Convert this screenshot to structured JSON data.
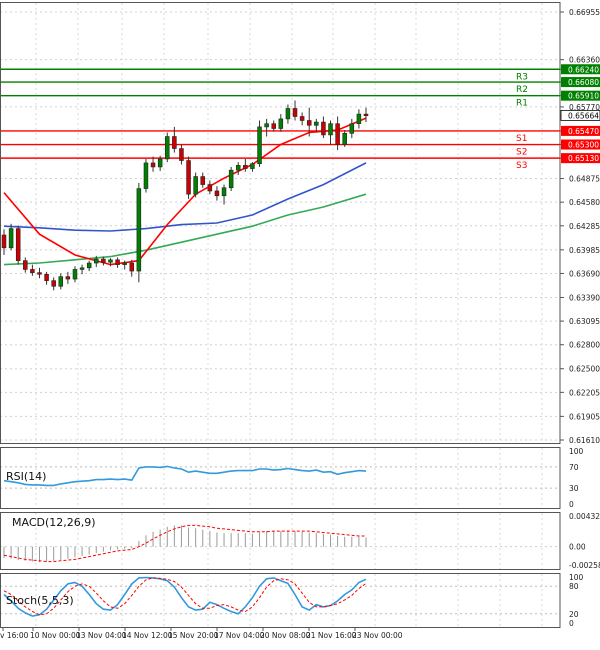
{
  "chart_data": {
    "type": "candlestick",
    "title": "",
    "price_axis": {
      "ticks": [
        "0.66955",
        "0.66360",
        "0.66240",
        "0.66080",
        "0.65910",
        "0.65770",
        "0.65664",
        "0.65470",
        "0.65300",
        "0.65130",
        "0.64875",
        "0.64580",
        "0.64285",
        "0.63985",
        "0.63690",
        "0.63390",
        "0.63095",
        "0.62800",
        "0.62500",
        "0.62205",
        "0.61905",
        "0.61610"
      ],
      "ylim": [
        0.6161,
        0.67
      ]
    },
    "current_price": "0.65664",
    "levels": [
      {
        "name": "R3",
        "value": 0.6624,
        "label": "0.66240",
        "color": "#008000"
      },
      {
        "name": "R2",
        "value": 0.6608,
        "label": "0.66080",
        "color": "#008000"
      },
      {
        "name": "R1",
        "value": 0.6591,
        "label": "0.65910",
        "color": "#008000"
      },
      {
        "name": "S1",
        "value": 0.6547,
        "label": "0.65470",
        "color": "#ff0000"
      },
      {
        "name": "S2",
        "value": 0.653,
        "label": "0.65300",
        "color": "#ff0000"
      },
      {
        "name": "S3",
        "value": 0.6513,
        "label": "0.65130",
        "color": "#ff0000"
      }
    ],
    "x_labels": [
      "v 16:00",
      "10 Nov 00:00",
      "13 Nov 04:00",
      "14 Nov 12:00",
      "15 Nov 20:00",
      "17 Nov 04:00",
      "20 Nov 08:00",
      "21 Nov 16:00",
      "23 Nov 00:00"
    ],
    "colors": {
      "up": "#008000",
      "down": "#cc0000",
      "ma_fast": "#ff0000",
      "ma_mid": "#3355cc",
      "ma_slow": "#33aa55",
      "indicator": "#3399dd"
    },
    "candles": [
      [
        0.6417,
        0.6424,
        0.6392,
        0.6401
      ],
      [
        0.6401,
        0.6431,
        0.6398,
        0.6425
      ],
      [
        0.6425,
        0.6429,
        0.638,
        0.6385
      ],
      [
        0.6385,
        0.6389,
        0.637,
        0.6374
      ],
      [
        0.6374,
        0.638,
        0.6366,
        0.637
      ],
      [
        0.637,
        0.6376,
        0.6363,
        0.6368
      ],
      [
        0.6368,
        0.6371,
        0.6355,
        0.636
      ],
      [
        0.636,
        0.6364,
        0.6348,
        0.6353
      ],
      [
        0.6353,
        0.6369,
        0.6349,
        0.6365
      ],
      [
        0.6365,
        0.6371,
        0.6356,
        0.6362
      ],
      [
        0.6362,
        0.6378,
        0.6358,
        0.6374
      ],
      [
        0.6374,
        0.638,
        0.6368,
        0.6376
      ],
      [
        0.6376,
        0.6385,
        0.6372,
        0.6382
      ],
      [
        0.6382,
        0.6391,
        0.6377,
        0.6387
      ],
      [
        0.6387,
        0.639,
        0.6379,
        0.6383
      ],
      [
        0.6383,
        0.6388,
        0.6378,
        0.6386
      ],
      [
        0.6386,
        0.6389,
        0.6376,
        0.638
      ],
      [
        0.638,
        0.6385,
        0.6374,
        0.6382
      ],
      [
        0.6382,
        0.6386,
        0.6365,
        0.6372
      ],
      [
        0.6372,
        0.6482,
        0.6358,
        0.6475
      ],
      [
        0.6475,
        0.6512,
        0.647,
        0.6507
      ],
      [
        0.6507,
        0.6515,
        0.6496,
        0.6502
      ],
      [
        0.6502,
        0.6516,
        0.6497,
        0.6512
      ],
      [
        0.6512,
        0.6545,
        0.6508,
        0.654
      ],
      [
        0.654,
        0.6552,
        0.652,
        0.6525
      ],
      [
        0.6525,
        0.653,
        0.6505,
        0.651
      ],
      [
        0.651,
        0.6515,
        0.6462,
        0.6468
      ],
      [
        0.6468,
        0.6495,
        0.6464,
        0.649
      ],
      [
        0.649,
        0.6495,
        0.6476,
        0.648
      ],
      [
        0.648,
        0.6485,
        0.6468,
        0.6472
      ],
      [
        0.6472,
        0.6478,
        0.646,
        0.6466
      ],
      [
        0.6466,
        0.648,
        0.6455,
        0.6476
      ],
      [
        0.6476,
        0.6502,
        0.6472,
        0.6498
      ],
      [
        0.6498,
        0.6508,
        0.6492,
        0.6504
      ],
      [
        0.6504,
        0.6512,
        0.6496,
        0.65
      ],
      [
        0.65,
        0.6508,
        0.6496,
        0.6506
      ],
      [
        0.6506,
        0.656,
        0.6502,
        0.6552
      ],
      [
        0.6552,
        0.6562,
        0.654,
        0.6556
      ],
      [
        0.6556,
        0.656,
        0.6546,
        0.655
      ],
      [
        0.655,
        0.6568,
        0.6546,
        0.6562
      ],
      [
        0.6562,
        0.658,
        0.6556,
        0.6575
      ],
      [
        0.6575,
        0.6585,
        0.656,
        0.6565
      ],
      [
        0.6565,
        0.657,
        0.6554,
        0.656
      ],
      [
        0.656,
        0.6576,
        0.654,
        0.6554
      ],
      [
        0.6554,
        0.6562,
        0.6545,
        0.6558
      ],
      [
        0.6558,
        0.6565,
        0.6538,
        0.6542
      ],
      [
        0.6542,
        0.656,
        0.653,
        0.6556
      ],
      [
        0.6556,
        0.6565,
        0.6523,
        0.653
      ],
      [
        0.653,
        0.6548,
        0.6527,
        0.6544
      ],
      [
        0.6544,
        0.6562,
        0.6538,
        0.6556
      ],
      [
        0.6556,
        0.6574,
        0.655,
        0.6568
      ],
      [
        0.6568,
        0.6576,
        0.6558,
        0.6566
      ]
    ],
    "ma_fast": [
      [
        0,
        0.647
      ],
      [
        5,
        0.6418
      ],
      [
        10,
        0.6392
      ],
      [
        15,
        0.638
      ],
      [
        19,
        0.6385
      ],
      [
        23,
        0.643
      ],
      [
        27,
        0.6468
      ],
      [
        31,
        0.6488
      ],
      [
        35,
        0.6505
      ],
      [
        39,
        0.653
      ],
      [
        43,
        0.6545
      ],
      [
        47,
        0.6548
      ],
      [
        51,
        0.6563
      ]
    ],
    "ma_mid": [
      [
        0,
        0.6428
      ],
      [
        5,
        0.6426
      ],
      [
        10,
        0.6423
      ],
      [
        15,
        0.6422
      ],
      [
        20,
        0.6425
      ],
      [
        25,
        0.643
      ],
      [
        30,
        0.6432
      ],
      [
        35,
        0.6442
      ],
      [
        40,
        0.6462
      ],
      [
        45,
        0.648
      ],
      [
        51,
        0.6507
      ]
    ],
    "ma_slow": [
      [
        0,
        0.638
      ],
      [
        5,
        0.6382
      ],
      [
        10,
        0.6386
      ],
      [
        15,
        0.639
      ],
      [
        20,
        0.6398
      ],
      [
        25,
        0.6408
      ],
      [
        30,
        0.6418
      ],
      [
        35,
        0.6428
      ],
      [
        40,
        0.6442
      ],
      [
        45,
        0.6452
      ],
      [
        51,
        0.6468
      ]
    ],
    "rsi": {
      "label": "RSI(14)",
      "ticks": [
        "100",
        "70",
        "30",
        "0"
      ],
      "ylim": [
        0,
        100
      ],
      "values": [
        44,
        42,
        40,
        37,
        36,
        36,
        35,
        35,
        38,
        40,
        42,
        43,
        44,
        46,
        46,
        47,
        46,
        47,
        45,
        68,
        70,
        70,
        69,
        71,
        68,
        66,
        60,
        62,
        60,
        58,
        58,
        60,
        62,
        63,
        63,
        63,
        66,
        66,
        64,
        65,
        67,
        65,
        63,
        62,
        64,
        60,
        61,
        56,
        59,
        61,
        63,
        62
      ]
    },
    "macd": {
      "label": "MACD(12,26,9)",
      "ticks": [
        "0.004324",
        "0.00",
        "-0.002586"
      ],
      "ylim": [
        -0.002586,
        0.004324
      ],
      "hist": [
        -0.0016,
        -0.0017,
        -0.0019,
        -0.002,
        -0.0021,
        -0.0022,
        -0.0021,
        -0.002,
        -0.0019,
        -0.0017,
        -0.0015,
        -0.0013,
        -0.0011,
        -0.0009,
        -0.0007,
        -0.0005,
        -0.0004,
        -0.0003,
        -0.0002,
        0.0008,
        0.0016,
        0.0021,
        0.0024,
        0.0028,
        0.003,
        0.003,
        0.0027,
        0.0026,
        0.0024,
        0.0022,
        0.002,
        0.0019,
        0.0019,
        0.0019,
        0.0019,
        0.0018,
        0.002,
        0.0022,
        0.0022,
        0.0022,
        0.0023,
        0.0022,
        0.0021,
        0.002,
        0.0019,
        0.0018,
        0.0017,
        0.0015,
        0.0014,
        0.0014,
        0.0014,
        0.0013
      ],
      "signal": [
        -0.0012,
        -0.0014,
        -0.0016,
        -0.0018,
        -0.0019,
        -0.002,
        -0.0021,
        -0.0021,
        -0.002,
        -0.0019,
        -0.0018,
        -0.0016,
        -0.0014,
        -0.0012,
        -0.001,
        -0.0008,
        -0.0006,
        -0.0005,
        -0.0004,
        0.0,
        0.0005,
        0.0011,
        0.0016,
        0.0021,
        0.0025,
        0.0028,
        0.003,
        0.003,
        0.0029,
        0.0028,
        0.0026,
        0.0025,
        0.0024,
        0.0023,
        0.0022,
        0.0021,
        0.0021,
        0.0021,
        0.0022,
        0.0022,
        0.0022,
        0.0022,
        0.0022,
        0.0022,
        0.0021,
        0.002,
        0.0019,
        0.0018,
        0.0017,
        0.0016,
        0.0015,
        0.0015
      ]
    },
    "stoch": {
      "label": "Stoch(5,5,3)",
      "ticks": [
        "100",
        "80",
        "20",
        "0"
      ],
      "ylim": [
        0,
        100
      ],
      "k": [
        62,
        48,
        32,
        22,
        15,
        18,
        30,
        50,
        70,
        85,
        88,
        80,
        62,
        42,
        30,
        28,
        40,
        62,
        85,
        98,
        99,
        98,
        96,
        92,
        78,
        55,
        35,
        28,
        30,
        45,
        40,
        32,
        25,
        20,
        35,
        55,
        80,
        96,
        98,
        92,
        86,
        62,
        35,
        28,
        40,
        35,
        38,
        48,
        62,
        72,
        88,
        95
      ],
      "d": [
        70,
        62,
        48,
        35,
        25,
        18,
        20,
        32,
        50,
        68,
        80,
        85,
        80,
        65,
        48,
        35,
        32,
        42,
        60,
        80,
        94,
        98,
        97,
        95,
        90,
        78,
        60,
        42,
        32,
        32,
        38,
        40,
        35,
        28,
        25,
        35,
        55,
        78,
        92,
        96,
        94,
        85,
        65,
        45,
        35,
        35,
        38,
        42,
        50,
        60,
        75,
        86
      ]
    }
  }
}
